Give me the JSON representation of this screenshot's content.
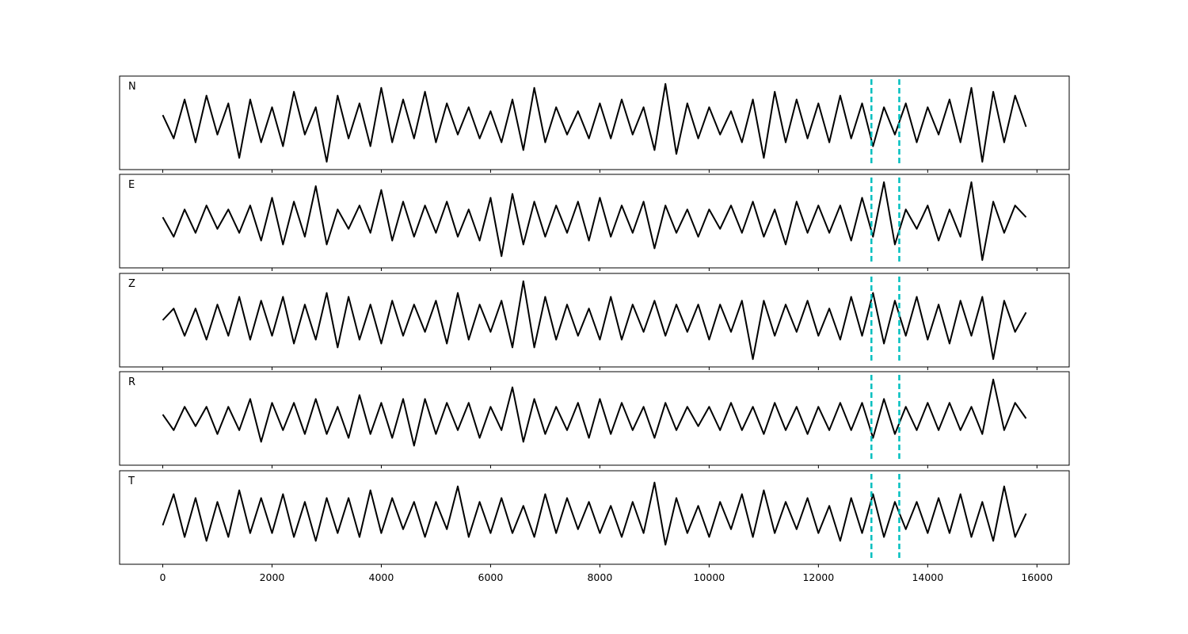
{
  "chart_data": {
    "type": "line",
    "layout": "5 stacked panels, shared x axis",
    "xlim": [
      -790,
      16590
    ],
    "ylim": [
      -1.2,
      1.2
    ],
    "x_ticks": [
      0,
      2000,
      4000,
      6000,
      8000,
      10000,
      12000,
      14000,
      16000
    ],
    "x_tick_labels": [
      "0",
      "2000",
      "4000",
      "6000",
      "8000",
      "10000",
      "12000",
      "14000",
      "16000"
    ],
    "x_start": 0,
    "x_step": 200,
    "line_color": "#000000",
    "vlines": {
      "x": [
        12970,
        13480
      ],
      "color": "#00bfbf",
      "style": "dashed"
    },
    "grid": false,
    "panels": [
      {
        "label": "N",
        "values": [
          0.2,
          -0.4,
          0.6,
          -0.5,
          0.7,
          -0.3,
          0.5,
          -0.9,
          0.6,
          -0.5,
          0.4,
          -0.6,
          0.8,
          -0.3,
          0.4,
          -1.0,
          0.7,
          -0.4,
          0.5,
          -0.6,
          0.9,
          -0.5,
          0.6,
          -0.4,
          0.8,
          -0.5,
          0.5,
          -0.3,
          0.4,
          -0.4,
          0.3,
          -0.5,
          0.6,
          -0.7,
          0.9,
          -0.5,
          0.4,
          -0.3,
          0.3,
          -0.4,
          0.5,
          -0.4,
          0.6,
          -0.3,
          0.4,
          -0.7,
          1.0,
          -0.8,
          0.5,
          -0.4,
          0.4,
          -0.3,
          0.3,
          -0.5,
          0.6,
          -0.9,
          0.8,
          -0.5,
          0.6,
          -0.4,
          0.5,
          -0.5,
          0.7,
          -0.4,
          0.5,
          -0.6,
          0.4,
          -0.3,
          0.5,
          -0.5,
          0.4,
          -0.3,
          0.6,
          -0.5,
          0.9,
          -1.0,
          0.8,
          -0.5,
          0.7,
          -0.1
        ]
      },
      {
        "label": "E",
        "values": [
          0.1,
          -0.4,
          0.3,
          -0.3,
          0.4,
          -0.2,
          0.3,
          -0.3,
          0.4,
          -0.5,
          0.6,
          -0.6,
          0.5,
          -0.4,
          0.9,
          -0.6,
          0.3,
          -0.2,
          0.4,
          -0.3,
          0.8,
          -0.5,
          0.5,
          -0.4,
          0.4,
          -0.3,
          0.5,
          -0.4,
          0.3,
          -0.5,
          0.6,
          -0.9,
          0.7,
          -0.6,
          0.5,
          -0.4,
          0.4,
          -0.3,
          0.5,
          -0.5,
          0.6,
          -0.4,
          0.4,
          -0.3,
          0.5,
          -0.7,
          0.4,
          -0.3,
          0.3,
          -0.4,
          0.3,
          -0.2,
          0.4,
          -0.3,
          0.5,
          -0.4,
          0.3,
          -0.6,
          0.5,
          -0.3,
          0.4,
          -0.3,
          0.4,
          -0.5,
          0.6,
          -0.4,
          1.0,
          -0.6,
          0.3,
          -0.2,
          0.4,
          -0.5,
          0.3,
          -0.4,
          1.0,
          -1.0,
          0.5,
          -0.3,
          0.4,
          0.1
        ]
      },
      {
        "label": "Z",
        "values": [
          0.0,
          0.3,
          -0.4,
          0.3,
          -0.5,
          0.4,
          -0.4,
          0.6,
          -0.5,
          0.5,
          -0.4,
          0.6,
          -0.6,
          0.4,
          -0.5,
          0.7,
          -0.7,
          0.6,
          -0.5,
          0.4,
          -0.6,
          0.5,
          -0.4,
          0.4,
          -0.3,
          0.5,
          -0.6,
          0.7,
          -0.5,
          0.4,
          -0.3,
          0.5,
          -0.7,
          1.0,
          -0.7,
          0.6,
          -0.5,
          0.4,
          -0.4,
          0.3,
          -0.5,
          0.6,
          -0.5,
          0.4,
          -0.3,
          0.5,
          -0.4,
          0.4,
          -0.3,
          0.4,
          -0.5,
          0.4,
          -0.3,
          0.5,
          -1.0,
          0.5,
          -0.4,
          0.4,
          -0.3,
          0.5,
          -0.4,
          0.3,
          -0.5,
          0.6,
          -0.4,
          0.7,
          -0.6,
          0.5,
          -0.4,
          0.6,
          -0.5,
          0.4,
          -0.6,
          0.5,
          -0.4,
          0.6,
          -1.0,
          0.5,
          -0.3,
          0.2
        ]
      },
      {
        "label": "R",
        "values": [
          0.1,
          -0.3,
          0.3,
          -0.2,
          0.3,
          -0.4,
          0.3,
          -0.3,
          0.5,
          -0.6,
          0.4,
          -0.3,
          0.4,
          -0.4,
          0.5,
          -0.4,
          0.3,
          -0.5,
          0.6,
          -0.4,
          0.4,
          -0.5,
          0.5,
          -0.7,
          0.5,
          -0.4,
          0.4,
          -0.3,
          0.4,
          -0.5,
          0.3,
          -0.3,
          0.8,
          -0.6,
          0.5,
          -0.4,
          0.3,
          -0.3,
          0.4,
          -0.5,
          0.5,
          -0.4,
          0.4,
          -0.3,
          0.3,
          -0.5,
          0.4,
          -0.3,
          0.3,
          -0.2,
          0.3,
          -0.3,
          0.4,
          -0.3,
          0.3,
          -0.4,
          0.4,
          -0.3,
          0.3,
          -0.4,
          0.3,
          -0.3,
          0.4,
          -0.3,
          0.4,
          -0.5,
          0.5,
          -0.4,
          0.3,
          -0.3,
          0.4,
          -0.3,
          0.4,
          -0.3,
          0.3,
          -0.4,
          1.0,
          -0.3,
          0.4,
          0.0
        ]
      },
      {
        "label": "T",
        "values": [
          -0.2,
          0.6,
          -0.5,
          0.5,
          -0.6,
          0.4,
          -0.5,
          0.7,
          -0.4,
          0.5,
          -0.4,
          0.6,
          -0.5,
          0.4,
          -0.6,
          0.5,
          -0.4,
          0.5,
          -0.5,
          0.7,
          -0.4,
          0.5,
          -0.3,
          0.4,
          -0.5,
          0.4,
          -0.3,
          0.8,
          -0.5,
          0.4,
          -0.4,
          0.5,
          -0.4,
          0.3,
          -0.5,
          0.6,
          -0.4,
          0.5,
          -0.3,
          0.4,
          -0.4,
          0.3,
          -0.5,
          0.4,
          -0.4,
          0.9,
          -0.7,
          0.5,
          -0.4,
          0.3,
          -0.5,
          0.4,
          -0.3,
          0.6,
          -0.5,
          0.7,
          -0.4,
          0.4,
          -0.3,
          0.5,
          -0.4,
          0.3,
          -0.6,
          0.5,
          -0.4,
          0.6,
          -0.5,
          0.4,
          -0.3,
          0.4,
          -0.4,
          0.5,
          -0.4,
          0.6,
          -0.5,
          0.4,
          -0.6,
          0.8,
          -0.5,
          0.1
        ]
      }
    ]
  }
}
